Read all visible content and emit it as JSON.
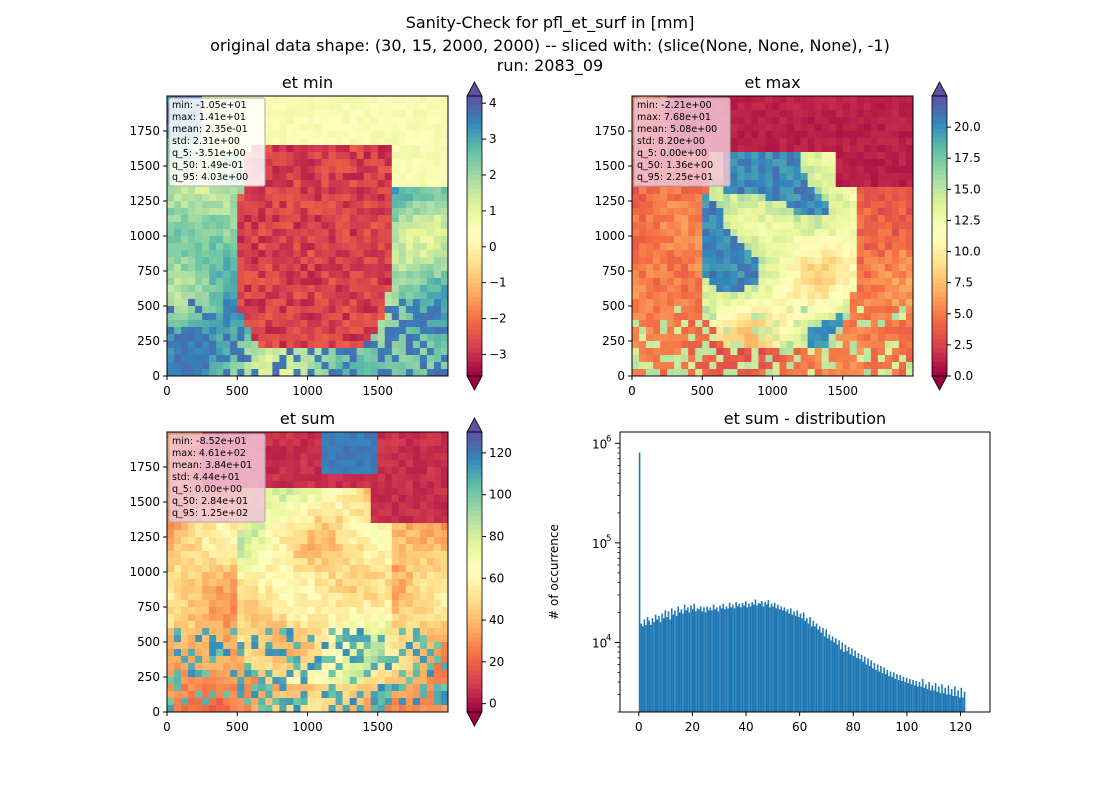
{
  "figure": {
    "title_lines": [
      "Sanity-Check for pfl_et_surf in [mm]",
      "original data shape: (30, 15, 2000, 2000) -- sliced with: (slice(None, None, None), -1)",
      "run: 2083_09"
    ]
  },
  "chart_data": [
    {
      "type": "heatmap",
      "title": "et min",
      "x_ticks": [
        0,
        500,
        1000,
        1500
      ],
      "y_ticks": [
        0,
        250,
        500,
        750,
        1000,
        1250,
        1500,
        1750
      ],
      "xlim": [
        0,
        2000
      ],
      "ylim": [
        0,
        2000
      ],
      "colormap": "Spectral",
      "colorbar": {
        "ticks": [
          -3,
          -2,
          -1,
          0,
          1,
          2,
          3,
          4
        ],
        "range": [
          -3.6,
          4.2
        ],
        "extend": "both"
      },
      "stats": [
        "min: -1.05e+01",
        "max: 1.41e+01",
        "mean: 2.35e-01",
        "std: 2.31e+00",
        "q_5: -3.51e+00",
        "q_50: 1.49e-01",
        "q_95: 4.03e+00"
      ],
      "stats_box_color": "#ffffff"
    },
    {
      "type": "heatmap",
      "title": "et max",
      "x_ticks": [
        0,
        500,
        1000,
        1500
      ],
      "y_ticks": [
        0,
        250,
        500,
        750,
        1000,
        1250,
        1500,
        1750
      ],
      "xlim": [
        0,
        2000
      ],
      "ylim": [
        0,
        2000
      ],
      "colormap": "Spectral",
      "colorbar": {
        "ticks": [
          0.0,
          2.5,
          5.0,
          7.5,
          10.0,
          12.5,
          15.0,
          17.5,
          20.0
        ],
        "tick_labels": [
          "0.0",
          "2.5",
          "5.0",
          "7.5",
          "10.0",
          "12.5",
          "15.0",
          "17.5",
          "20.0"
        ],
        "range": [
          0,
          22.5
        ],
        "extend": "both"
      },
      "stats": [
        "min: -2.21e+00",
        "max: 7.68e+01",
        "mean: 5.08e+00",
        "std: 8.20e+00",
        "q_5: 0.00e+00",
        "q_50: 1.36e+00",
        "q_95: 2.25e+01"
      ],
      "stats_box_color": "#f2c4d6"
    },
    {
      "type": "heatmap",
      "title": "et sum",
      "x_ticks": [
        0,
        500,
        1000,
        1500
      ],
      "y_ticks": [
        0,
        250,
        500,
        750,
        1000,
        1250,
        1500,
        1750
      ],
      "xlim": [
        0,
        2000
      ],
      "ylim": [
        0,
        2000
      ],
      "colormap": "Spectral",
      "colorbar": {
        "ticks": [
          0,
          20,
          40,
          60,
          80,
          100,
          120
        ],
        "range": [
          -4,
          130
        ],
        "extend": "both"
      },
      "stats": [
        "min: -8.52e+01",
        "max: 4.61e+02",
        "mean: 3.84e+01",
        "std: 4.44e+01",
        "q_5: 0.00e+00",
        "q_50: 2.84e+01",
        "q_95: 1.25e+02"
      ],
      "stats_box_color": "#f2c4d6"
    },
    {
      "type": "bar",
      "title": "et sum - distribution",
      "ylabel": "# of occurrence",
      "yscale": "log",
      "ylim": [
        2000,
        1300000
      ],
      "xlim": [
        -7,
        131
      ],
      "x_ticks": [
        0,
        20,
        40,
        60,
        80,
        100,
        120
      ],
      "y_ticks": [
        10000,
        100000,
        1000000
      ],
      "y_tick_labels": [
        [
          "10",
          "4"
        ],
        [
          "10",
          "5"
        ],
        [
          "10",
          "6"
        ]
      ],
      "color": "#1f77b4",
      "bin_start": 0,
      "bin_width": 0.6,
      "values": [
        810000,
        15500,
        14500,
        17000,
        15000,
        18000,
        16500,
        15000,
        17500,
        16000,
        19000,
        17000,
        18500,
        16000,
        19500,
        17500,
        21000,
        18000,
        20500,
        17000,
        22000,
        19000,
        21000,
        18500,
        23000,
        20000,
        21500,
        19500,
        24000,
        21000,
        22500,
        20000,
        23500,
        21500,
        24500,
        20500,
        22000,
        21500,
        23000,
        20500,
        22500,
        20000,
        23000,
        21000,
        22500,
        21000,
        24000,
        21500,
        22500,
        20500,
        23500,
        22000,
        24500,
        21500,
        23000,
        22000,
        25000,
        22500,
        24000,
        22000,
        25500,
        23000,
        24500,
        22500,
        25000,
        23500,
        26000,
        22500,
        24500,
        23000,
        25500,
        24000,
        27000,
        23500,
        25000,
        24500,
        26000,
        23000,
        25500,
        24000,
        26500,
        22500,
        24500,
        23000,
        25000,
        22000,
        24000,
        21500,
        23000,
        21000,
        22500,
        20500,
        21500,
        19500,
        22000,
        19000,
        20500,
        18500,
        21000,
        18000,
        19500,
        17500,
        20000,
        16500,
        17500,
        15500,
        18000,
        14500,
        16500,
        14500,
        15500,
        13500,
        14500,
        12500,
        14000,
        11500,
        13500,
        11000,
        12000,
        10500,
        11500,
        10000,
        11000,
        9500,
        10500,
        8500,
        10000,
        8000,
        9500,
        8200,
        9000,
        7600,
        8700,
        7300,
        8300,
        7000,
        7800,
        6800,
        7500,
        6400,
        7200,
        6000,
        6900,
        5800,
        6600,
        5500,
        6200,
        5300,
        6000,
        5100,
        5800,
        4900,
        5600,
        4800,
        5300,
        4600,
        5100,
        4500,
        5000,
        4300,
        4800,
        4200,
        4700,
        4100,
        4500,
        4000,
        4400,
        3900,
        4300,
        3800,
        4200,
        3700,
        4100,
        3600,
        4000,
        3600,
        4300,
        3500,
        3800,
        3400,
        4000,
        3300,
        3700,
        3300,
        3900,
        3200,
        3600,
        3100,
        3800,
        3100,
        3500,
        3000,
        3700,
        3000,
        3400,
        2900,
        3600,
        2900,
        3300,
        2800,
        3500,
        2800,
        3200
      ]
    }
  ]
}
